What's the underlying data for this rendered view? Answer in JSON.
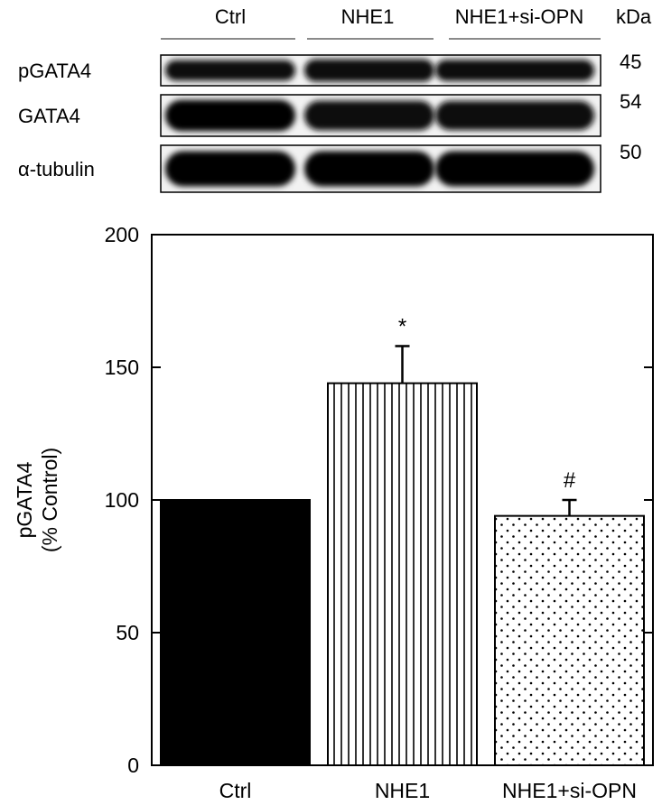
{
  "blot": {
    "lanes": [
      "Ctrl",
      "NHE1",
      "NHE1+si-OPN"
    ],
    "kda_header": "kDa",
    "rows": [
      {
        "protein": "pGATA4",
        "kda": "45",
        "intensity": [
          0.8,
          0.95,
          0.85
        ]
      },
      {
        "protein": "GATA4",
        "kda": "54",
        "intensity": [
          1.0,
          0.9,
          0.88
        ]
      },
      {
        "protein": "α-tubulin",
        "kda": "50",
        "intensity": [
          1.0,
          1.0,
          1.0
        ]
      }
    ]
  },
  "chart_data": {
    "type": "bar",
    "categories": [
      "Ctrl",
      "NHE1",
      "NHE1+si-OPN"
    ],
    "values": [
      100,
      144,
      94
    ],
    "errors": [
      0,
      14,
      6
    ],
    "annotations": [
      "",
      "*",
      "#"
    ],
    "fills": [
      "solid",
      "vertical-stripes",
      "dots"
    ],
    "ylabel_line1": "pGATA4",
    "ylabel_line2": "(% Control)",
    "ylim": [
      0,
      200
    ],
    "yticks": [
      0,
      50,
      100,
      150,
      200
    ],
    "grid": false
  }
}
